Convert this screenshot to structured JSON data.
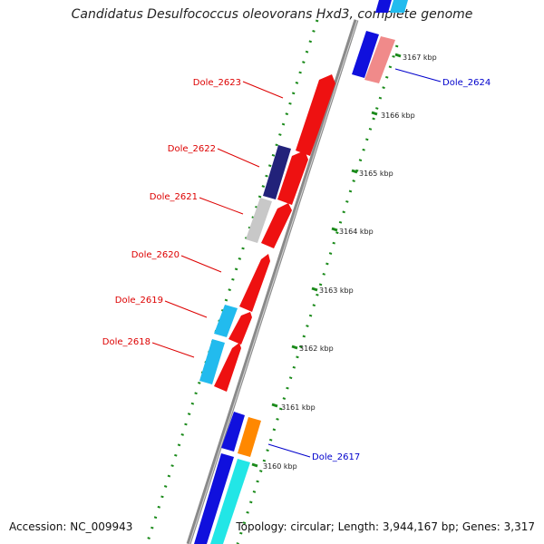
{
  "title": "Candidatus Desulfococcus oleovorans Hxd3, complete genome",
  "footer": {
    "accession": "Accession: NC_009943",
    "summary": "Topology: circular; Length: 3,944,167 bp; Genes: 3,317"
  },
  "colors": {
    "red_gene": "#ee1111",
    "blue_gene": "#1010dd",
    "pink_gene": "#f08a8a",
    "navy_gene": "#22227a",
    "grey_gene": "#c8c8c8",
    "cyan_gene": "#22bbee",
    "orange_gene": "#ff8800",
    "aqua_gene": "#22e6e6",
    "backbone": "#888888",
    "dots": "#1a8a1a",
    "label_red": "#dd0000",
    "label_blue": "#0000cc"
  },
  "gene_labels": [
    {
      "text": "Dole_2624",
      "color": "#0000cc"
    },
    {
      "text": "Dole_2623",
      "color": "#dd0000"
    },
    {
      "text": "Dole_2622",
      "color": "#dd0000"
    },
    {
      "text": "Dole_2621",
      "color": "#dd0000"
    },
    {
      "text": "Dole_2620",
      "color": "#dd0000"
    },
    {
      "text": "Dole_2619",
      "color": "#dd0000"
    },
    {
      "text": "Dole_2618",
      "color": "#dd0000"
    },
    {
      "text": "Dole_2617",
      "color": "#0000cc"
    }
  ],
  "scale_labels": [
    "3167 kbp",
    "3166 kbp",
    "3165 kbp",
    "3164 kbp",
    "3163 kbp",
    "3162 kbp",
    "3161 kbp",
    "3160 kbp"
  ]
}
